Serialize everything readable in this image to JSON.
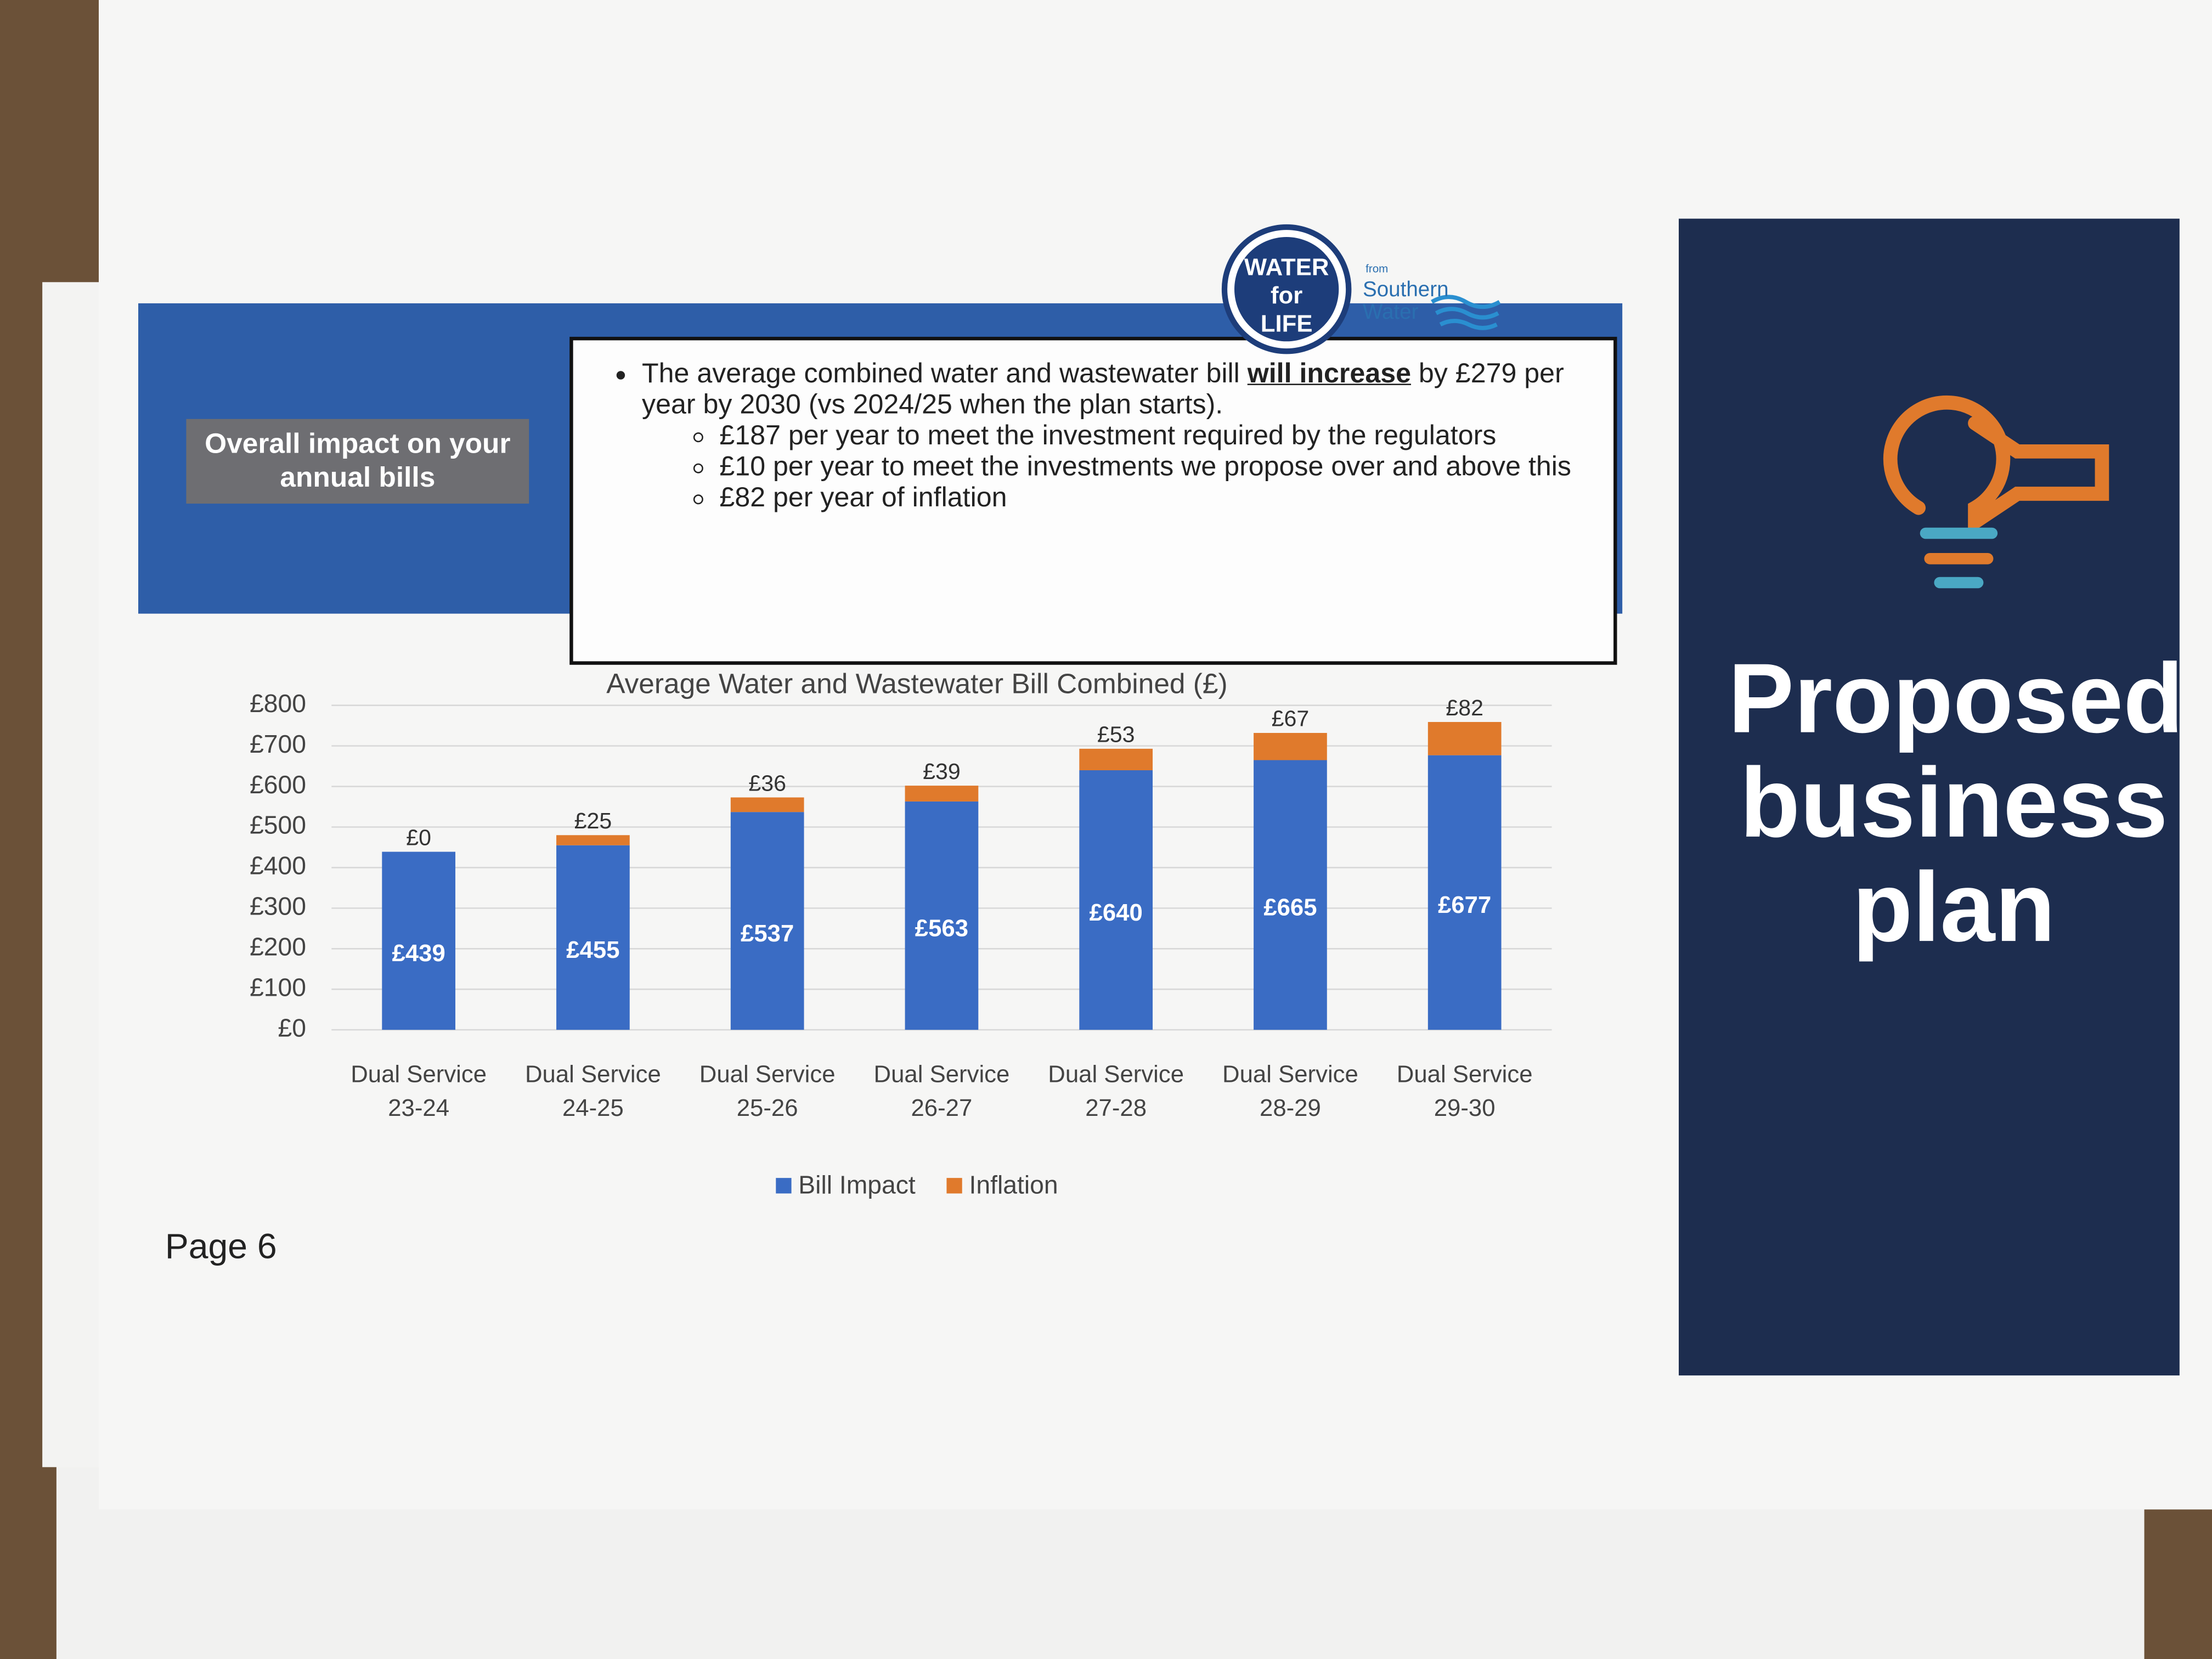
{
  "logo": {
    "badge": "WATER for LIFE",
    "from": "from",
    "brand": "Southern Water"
  },
  "banner": {
    "label": "Overall impact on your annual bills"
  },
  "bullets": {
    "main": {
      "before": "The average combined water and wastewater bill ",
      "emphasis": "will increase",
      "after": " by £279 per year by 2030 (vs 2024/25 when the plan starts)."
    },
    "items": [
      "£187 per year to meet the investment required by the regulators",
      "£10 per year to meet the investments we propose over and above this",
      "£82 per year of inflation"
    ]
  },
  "chart_data": {
    "type": "bar",
    "stacked": true,
    "title": "Average Water and Wastewater Bill Combined (£)",
    "categories": [
      "Dual Service 23-24",
      "Dual Service 24-25",
      "Dual Service 25-26",
      "Dual Service 26-27",
      "Dual Service 27-28",
      "Dual Service 28-29",
      "Dual Service 29-30"
    ],
    "series": [
      {
        "name": "Bill Impact",
        "color": "#3a6cc4",
        "values": [
          439,
          455,
          537,
          563,
          640,
          665,
          677
        ],
        "value_labels": [
          "£439",
          "£455",
          "£537",
          "£563",
          "£640",
          "£665",
          "£677"
        ]
      },
      {
        "name": "Inflation",
        "color": "#e07a2c",
        "values": [
          0,
          25,
          36,
          39,
          53,
          67,
          82
        ],
        "value_labels": [
          "£0",
          "£25",
          "£36",
          "£39",
          "£53",
          "£67",
          "£82"
        ]
      }
    ],
    "ylim": [
      0,
      800
    ],
    "yticks": [
      {
        "value": 0,
        "label": "£0"
      },
      {
        "value": 100,
        "label": "£100"
      },
      {
        "value": 200,
        "label": "£200"
      },
      {
        "value": 300,
        "label": "£300"
      },
      {
        "value": 400,
        "label": "£400"
      },
      {
        "value": 500,
        "label": "£500"
      },
      {
        "value": 600,
        "label": "£600"
      },
      {
        "value": 700,
        "label": "£700"
      },
      {
        "value": 800,
        "label": "£800"
      }
    ],
    "grid": true,
    "legend": "bottom"
  },
  "page": "Page 6",
  "sidebar": {
    "title": "Proposed business plan"
  }
}
